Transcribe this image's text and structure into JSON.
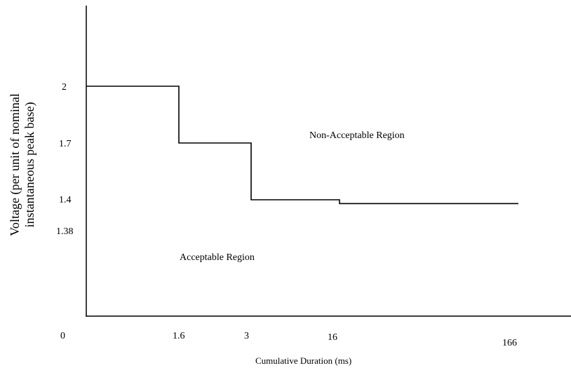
{
  "chart_data": {
    "type": "line",
    "subtype": "step",
    "title": "",
    "xlabel": "Cumulative Duration (ms)",
    "ylabel_lines": [
      "Voltage (per unit of nominal",
      "instantaneous peak base)"
    ],
    "x_tick_labels": [
      "0",
      "1.6",
      "3",
      "16",
      "166"
    ],
    "y_tick_labels": [
      "2",
      "1.7",
      "1.4",
      "1.38"
    ],
    "series": [
      {
        "points": [
          {
            "x": "0",
            "y": 2
          },
          {
            "x": "1.6",
            "y": 2
          },
          {
            "x": "1.6",
            "y": 1.7
          },
          {
            "x": "3",
            "y": 1.7
          },
          {
            "x": "3",
            "y": 1.4
          },
          {
            "x": "16",
            "y": 1.4
          },
          {
            "x": "16",
            "y": 1.38
          },
          {
            "x": "166",
            "y": 1.38
          }
        ]
      }
    ],
    "annotations": {
      "upper_region": "Non-Acceptable Region",
      "lower_region": "Acceptable Region"
    },
    "grid": false,
    "legend": "none",
    "colors": {
      "line": "#000000",
      "background": "#ffffff"
    }
  }
}
